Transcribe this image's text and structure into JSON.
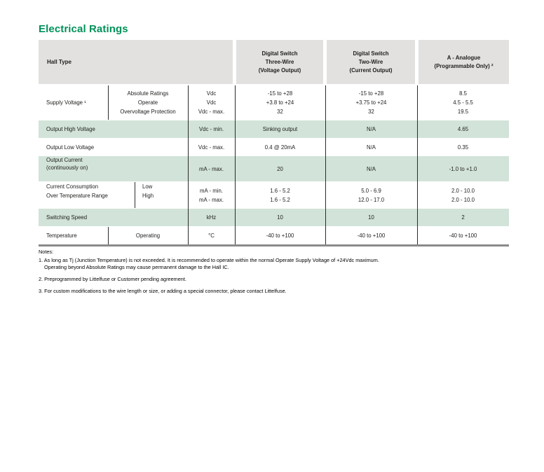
{
  "page": {
    "title": "Electrical Ratings"
  },
  "colors": {
    "accent_green": "#00925A",
    "row_highlight_green": "#D2E3D9",
    "header_gray": "#E2E1E0",
    "divider_dark": "#2B2B2B",
    "bottom_rule_gray": "#8A8A8A"
  },
  "table": {
    "header": {
      "hall_type": "Hall Type",
      "three_wire": [
        "Digital Switch",
        "Three-Wire",
        "(Voltage Output)"
      ],
      "two_wire": [
        "Digital Switch",
        "Two-Wire",
        "(Current Output)"
      ],
      "analogue": [
        "A - Analogue",
        "(Programmable Only) ²"
      ]
    },
    "supply_voltage": {
      "label": "Supply Voltage ¹",
      "sub": [
        "Absolute Ratings",
        "Operate",
        "Overvoltage Protection"
      ],
      "units": [
        "Vdc",
        "Vdc",
        "Vdc - max."
      ],
      "three_wire": [
        "-15 to +28",
        "+3.8 to +24",
        "32"
      ],
      "two_wire": [
        "-15 to +28",
        "+3.75 to +24",
        "32"
      ],
      "analogue": [
        "8.5",
        "4.5 - 5.5",
        "19.5"
      ]
    },
    "output_high_voltage": {
      "label": "Output High Voltage",
      "units": "Vdc - min.",
      "three_wire": "Sinking output",
      "two_wire": "N/A",
      "analogue": "4.65"
    },
    "output_low_voltage": {
      "label": "Output Low Voltage",
      "units": "Vdc - max.",
      "three_wire": "0.4 @ 20mA",
      "two_wire": "N/A",
      "analogue": "0.35"
    },
    "output_current": {
      "label": [
        "Output Current",
        "(continuously on)"
      ],
      "units": "mA - max.",
      "three_wire": "20",
      "two_wire": "N/A",
      "analogue": "-1.0 to +1.0"
    },
    "current_consumption": {
      "label": [
        "Current Consumption",
        "Over Temperature Range"
      ],
      "sub": [
        "Low",
        "High"
      ],
      "units": [
        "mA - min.",
        "mA - max."
      ],
      "three_wire": [
        "1.6 - 5.2",
        "1.6 - 5.2"
      ],
      "two_wire": [
        "5.0 - 6.9",
        "12.0 - 17.0"
      ],
      "analogue": [
        "2.0 - 10.0",
        "2.0 - 10.0"
      ]
    },
    "switching_speed": {
      "label": "Switching Speed",
      "units": "kHz",
      "three_wire": "10",
      "two_wire": "10",
      "analogue": "2"
    },
    "temperature": {
      "label": "Temperature",
      "sub": "Operating",
      "units": "°C",
      "three_wire": "-40 to +100",
      "two_wire": "-40 to +100",
      "analogue": "-40 to +100"
    }
  },
  "notes": {
    "heading": "Notes:",
    "note1_line1": "1. As long as Tj (Junction Temperature) is not exceeded. It is recommended to operate within the normal Operate Supply Voltage of +24Vdc maximum.",
    "note1_line2": "Operating beyond Absolute Ratings may cause permanent damage to the Hall IC.",
    "note2": "2. Preprogrammed by Littelfuse or Customer pending agreement.",
    "note3": "3. For custom modifications to the wire length or size, or adding a special connector, please contact Littelfuse."
  }
}
